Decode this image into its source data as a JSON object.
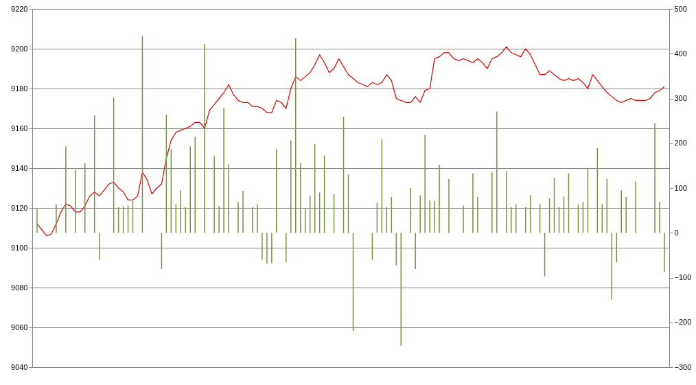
{
  "chart_data": {
    "type": "line",
    "categories": [
      null,
      null,
      null,
      null,
      null,
      null,
      null,
      null,
      null,
      null,
      null,
      null,
      null,
      null,
      null,
      null,
      null,
      null,
      null,
      null,
      null,
      null,
      null,
      null,
      null,
      null,
      null,
      null,
      null,
      null,
      null,
      null,
      null,
      null,
      null,
      null,
      null,
      null,
      null,
      null,
      null,
      null,
      null,
      null,
      null,
      null,
      null,
      null,
      null,
      null,
      null,
      null,
      null,
      null,
      null,
      null,
      null,
      null,
      null,
      null,
      null,
      null,
      null,
      null,
      null,
      null,
      null,
      null,
      null,
      null,
      null,
      null,
      null,
      null,
      null,
      null,
      null,
      null,
      null,
      null,
      null,
      null,
      null,
      null,
      null,
      null,
      null,
      null,
      null,
      null,
      null,
      null,
      null,
      null,
      null,
      null,
      null,
      null,
      null,
      null,
      null,
      null,
      null,
      null,
      null,
      null,
      null,
      null,
      null,
      null,
      null,
      null,
      null,
      null,
      null,
      null,
      null,
      null,
      null,
      null,
      null,
      null,
      null,
      null,
      null,
      null,
      null,
      null,
      null,
      null,
      null,
      null
    ],
    "series": [
      {
        "color": "#e00000",
        "values": [
          9112,
          9109,
          9106,
          9107,
          9112,
          9118,
          9122,
          9121,
          9118,
          9118,
          9121,
          9126,
          9128,
          9126,
          9129,
          9132,
          9133,
          9130,
          9128,
          9124,
          9124,
          9126,
          9138,
          9134,
          9127,
          9130,
          9132,
          9145,
          9154,
          9158,
          9159,
          9160,
          9161,
          9163,
          9163,
          9160,
          9169,
          9172,
          9175,
          9178,
          9182,
          9177,
          9174,
          9173,
          9173,
          9171,
          9171,
          9170,
          9168,
          9168,
          9174,
          9173,
          9170,
          9180,
          9186,
          9184,
          9186,
          9188,
          9192,
          9197,
          9193,
          9188,
          9190,
          9195,
          9191,
          9187,
          9185,
          9183,
          9182,
          9181,
          9183,
          9182,
          9183,
          9187,
          9184,
          9175,
          9174,
          9173,
          9173,
          9176,
          9173,
          9179,
          9180,
          9195,
          9196,
          9198,
          9198,
          9195,
          9194,
          9195,
          9194,
          9193,
          9195,
          9193,
          9190,
          9195,
          9196,
          9198,
          9201,
          9198,
          9197,
          9196,
          9200,
          9197,
          9192,
          9187,
          9187,
          9189,
          9187,
          9185,
          9184,
          9185,
          9184,
          9185,
          9183,
          9180,
          9187,
          9184,
          9181,
          9178,
          9176,
          9174,
          9173,
          9174,
          9175,
          9174,
          9174,
          9174,
          9175,
          9178,
          9179,
          9181
        ]
      },
      {
        "type": "bar",
        "axis": "y2",
        "color": "#77933c",
        "values": [
          55,
          0,
          0,
          0,
          64,
          0,
          193,
          0,
          141,
          0,
          156,
          0,
          262,
          -60,
          0,
          0,
          302,
          57,
          60,
          61,
          71,
          0,
          440,
          0,
          0,
          0,
          -81,
          264,
          187,
          64,
          95,
          57,
          193,
          215,
          0,
          422,
          0,
          172,
          60,
          279,
          153,
          0,
          69,
          94,
          0,
          57,
          64,
          -60,
          -69,
          -68,
          187,
          0,
          -66,
          206,
          434,
          156,
          55,
          83,
          198,
          90,
          173,
          0,
          86,
          0,
          259,
          130,
          -219,
          0,
          0,
          0,
          -60,
          67,
          209,
          57,
          80,
          -72,
          -252,
          0,
          100,
          -81,
          84,
          218,
          72,
          71,
          152,
          0,
          120,
          0,
          0,
          61,
          0,
          133,
          80,
          0,
          0,
          135,
          271,
          0,
          138,
          57,
          64,
          0,
          57,
          84,
          0,
          64,
          -97,
          77,
          123,
          57,
          81,
          133,
          0,
          63,
          69,
          143,
          0,
          189,
          64,
          120,
          -149,
          -66,
          95,
          80,
          0,
          115,
          0,
          0,
          0,
          245,
          69,
          -87
        ]
      }
    ],
    "ylim": [
      9040,
      9220
    ],
    "yticks": [
      9040,
      9060,
      9080,
      9100,
      9120,
      9140,
      9160,
      9180,
      9200,
      9220
    ],
    "y2lim": [
      -300,
      500
    ],
    "y2ticks": [
      -300,
      -200,
      -100,
      0,
      100,
      200,
      300,
      400,
      500
    ],
    "grid": "y"
  }
}
